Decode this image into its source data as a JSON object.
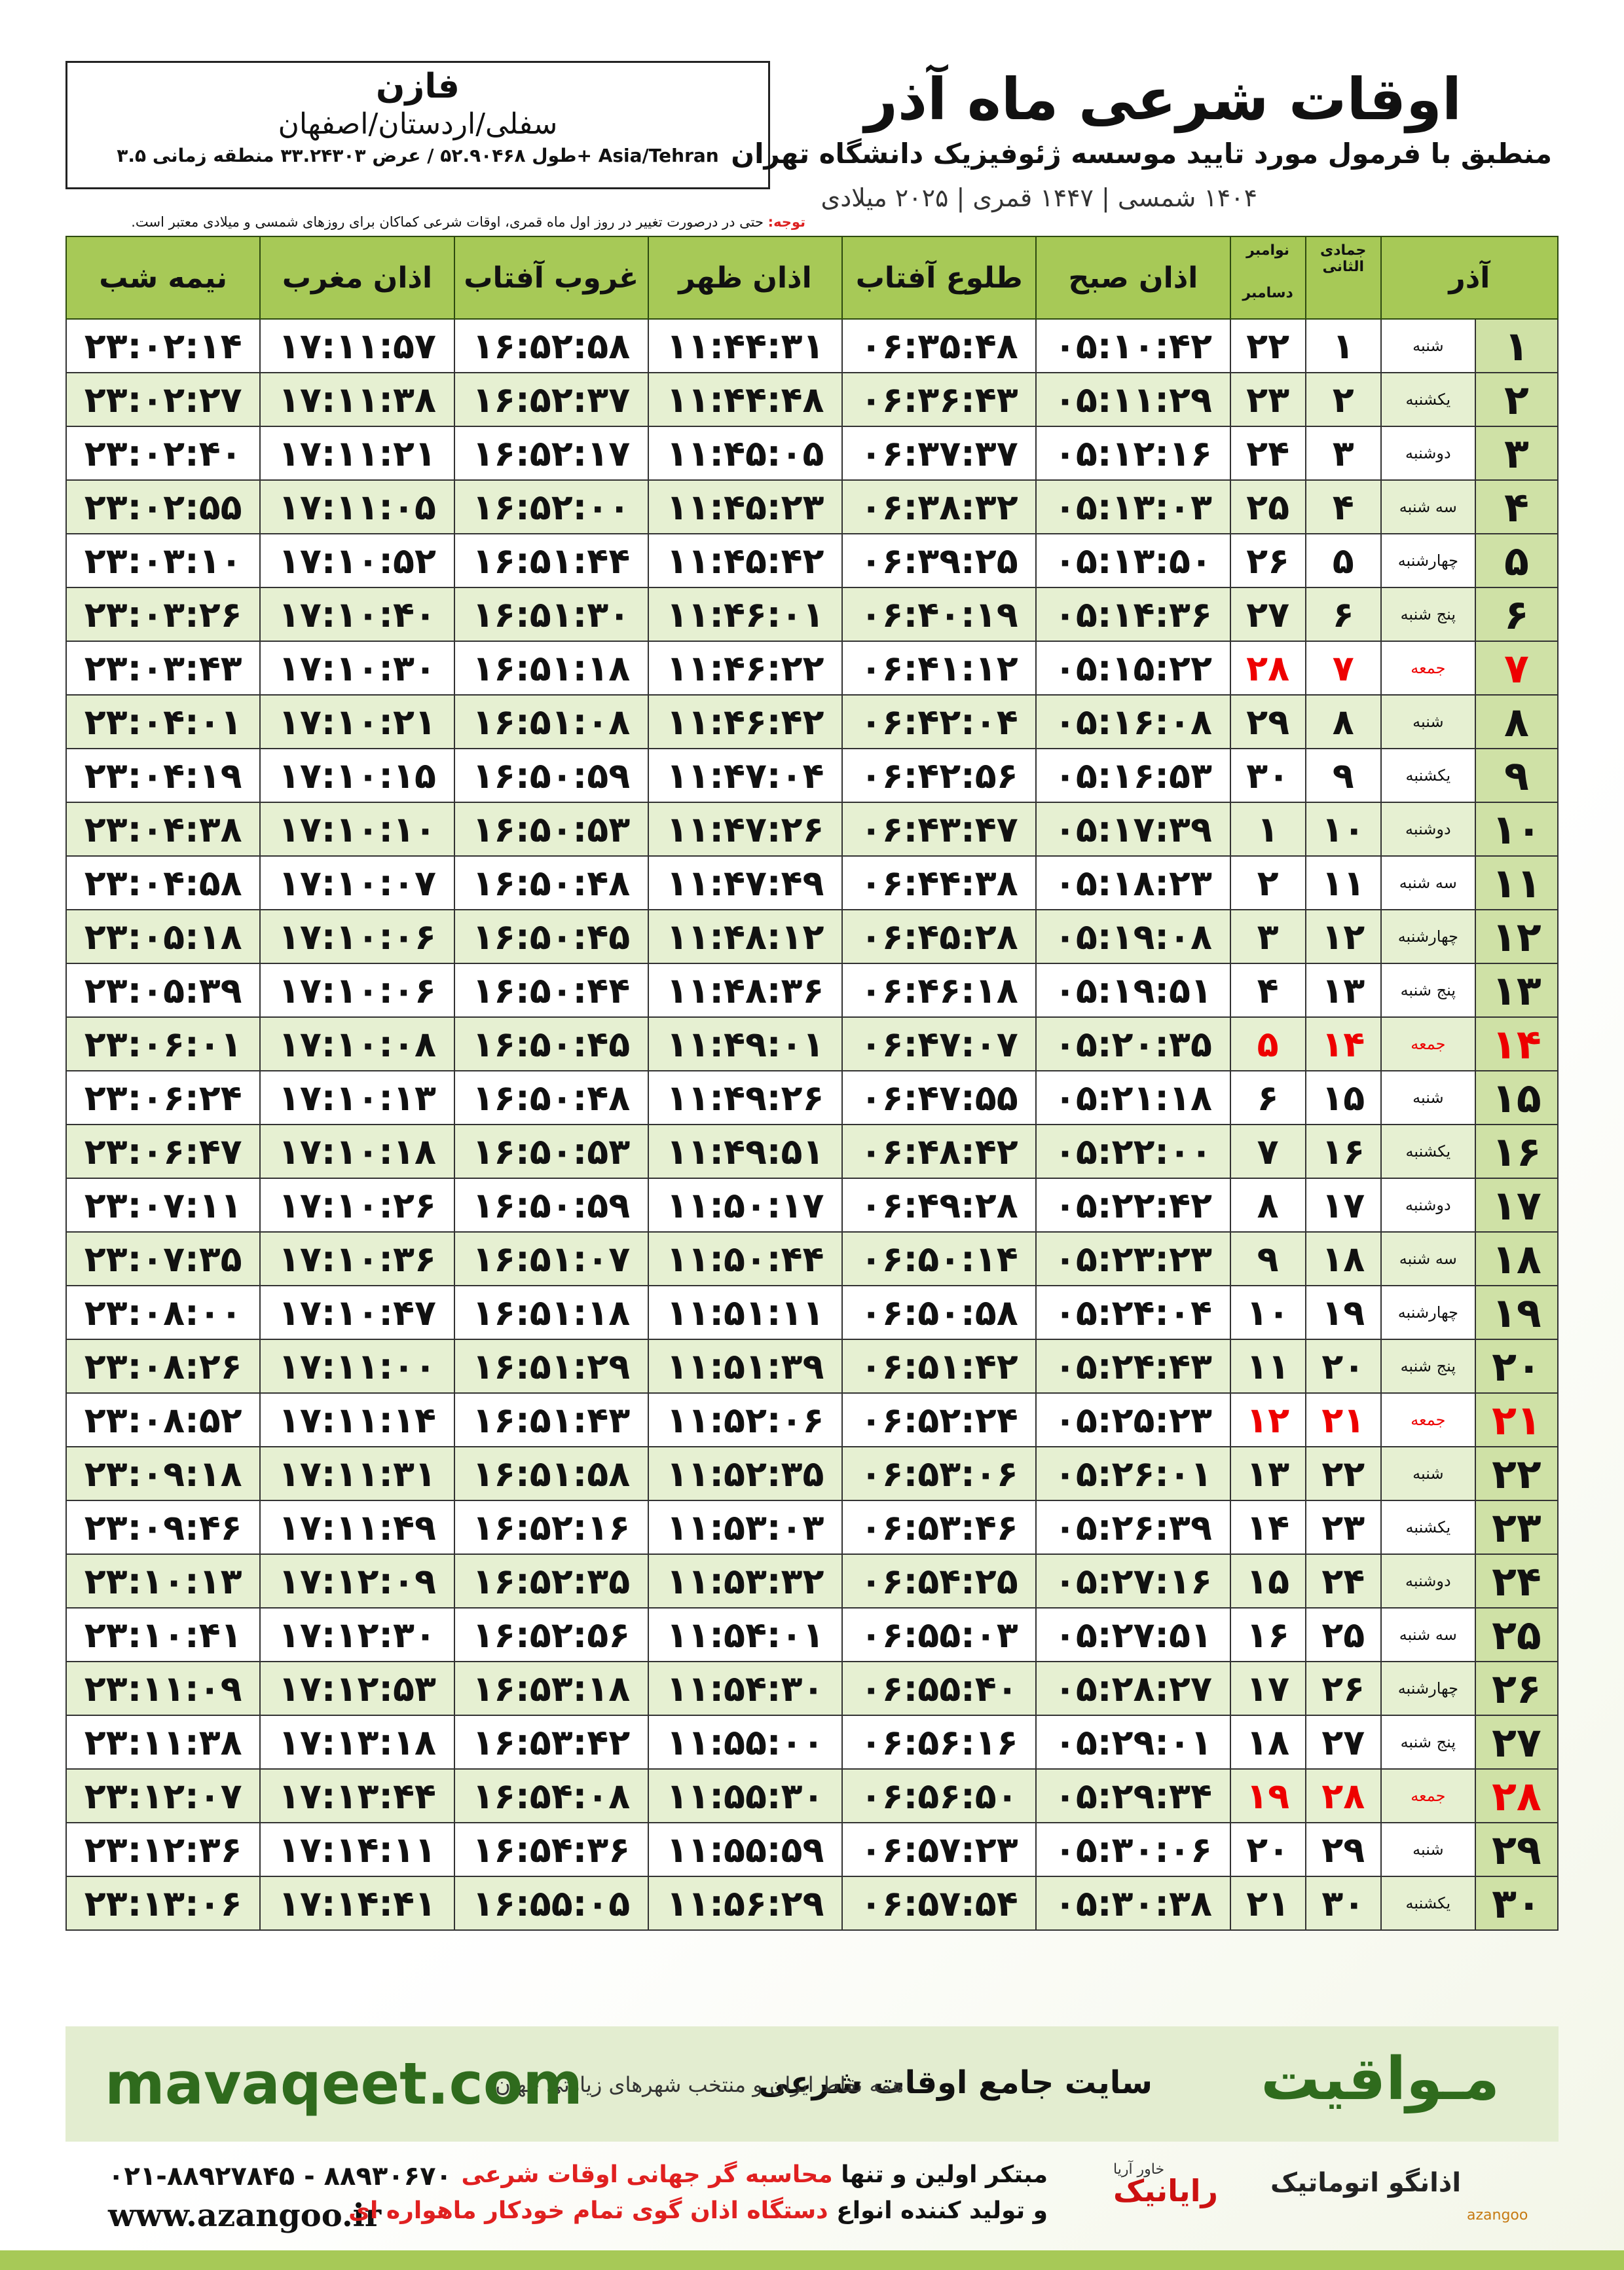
{
  "header": {
    "city": "فازن",
    "region": "سفلی/اردستان/اصفهان",
    "coords": "طول ۵۲.۹۰۴۶۸ / عرض ۳۳.۲۴۳۰۳ منطقه زمانی ۳.۵+ Asia/Tehran",
    "title": "اوقات شرعی ماه آذر",
    "subtitle": "منطبق با فرمول مورد تایید موسسه ژئوفیزیک دانشگاه تهران",
    "dates": "۱۴۰۴ شمسی | ۱۴۴۷ قمری | ۲۰۲۵ میلادی",
    "note_label": "توجه:",
    "note": "حتی در درصورت تغییر در روز اول ماه قمری، اوقات شرعی کماکان برای روزهای شمسی و میلادی معتبر است."
  },
  "table": {
    "header": {
      "day": "آذر",
      "hijri": "جمادی الثانی",
      "greg_top": "نوامبر",
      "greg_bottom": "دسامبر",
      "fajr": "اذان صبح",
      "sunrise": "طلوع آفتاب",
      "dhuhr": "اذان ظهر",
      "sunset": "غروب آفتاب",
      "maghrib": "اذان مغرب",
      "midnight": "نیمه شب"
    },
    "rows": [
      [
        "۱",
        "شنبه",
        "۱",
        "۲۲",
        "۰۵:۱۰:۴۲",
        "۰۶:۳۵:۴۸",
        "۱۱:۴۴:۳۱",
        "۱۶:۵۲:۵۸",
        "۱۷:۱۱:۵۷",
        "۲۳:۰۲:۱۴"
      ],
      [
        "۲",
        "یکشنبه",
        "۲",
        "۲۳",
        "۰۵:۱۱:۲۹",
        "۰۶:۳۶:۴۳",
        "۱۱:۴۴:۴۸",
        "۱۶:۵۲:۳۷",
        "۱۷:۱۱:۳۸",
        "۲۳:۰۲:۲۷"
      ],
      [
        "۳",
        "دوشنبه",
        "۳",
        "۲۴",
        "۰۵:۱۲:۱۶",
        "۰۶:۳۷:۳۷",
        "۱۱:۴۵:۰۵",
        "۱۶:۵۲:۱۷",
        "۱۷:۱۱:۲۱",
        "۲۳:۰۲:۴۰"
      ],
      [
        "۴",
        "سه شنبه",
        "۴",
        "۲۵",
        "۰۵:۱۳:۰۳",
        "۰۶:۳۸:۳۲",
        "۱۱:۴۵:۲۳",
        "۱۶:۵۲:۰۰",
        "۱۷:۱۱:۰۵",
        "۲۳:۰۲:۵۵"
      ],
      [
        "۵",
        "چهارشنبه",
        "۵",
        "۲۶",
        "۰۵:۱۳:۵۰",
        "۰۶:۳۹:۲۵",
        "۱۱:۴۵:۴۲",
        "۱۶:۵۱:۴۴",
        "۱۷:۱۰:۵۲",
        "۲۳:۰۳:۱۰"
      ],
      [
        "۶",
        "پنج شنبه",
        "۶",
        "۲۷",
        "۰۵:۱۴:۳۶",
        "۰۶:۴۰:۱۹",
        "۱۱:۴۶:۰۱",
        "۱۶:۵۱:۳۰",
        "۱۷:۱۰:۴۰",
        "۲۳:۰۳:۲۶"
      ],
      [
        "۷",
        "جمعه",
        "۷",
        "۲۸",
        "۰۵:۱۵:۲۲",
        "۰۶:۴۱:۱۲",
        "۱۱:۴۶:۲۲",
        "۱۶:۵۱:۱۸",
        "۱۷:۱۰:۳۰",
        "۲۳:۰۳:۴۳"
      ],
      [
        "۸",
        "شنبه",
        "۸",
        "۲۹",
        "۰۵:۱۶:۰۸",
        "۰۶:۴۲:۰۴",
        "۱۱:۴۶:۴۲",
        "۱۶:۵۱:۰۸",
        "۱۷:۱۰:۲۱",
        "۲۳:۰۴:۰۱"
      ],
      [
        "۹",
        "یکشنبه",
        "۹",
        "۳۰",
        "۰۵:۱۶:۵۳",
        "۰۶:۴۲:۵۶",
        "۱۱:۴۷:۰۴",
        "۱۶:۵۰:۵۹",
        "۱۷:۱۰:۱۵",
        "۲۳:۰۴:۱۹"
      ],
      [
        "۱۰",
        "دوشنبه",
        "۱۰",
        "۱",
        "۰۵:۱۷:۳۹",
        "۰۶:۴۳:۴۷",
        "۱۱:۴۷:۲۶",
        "۱۶:۵۰:۵۳",
        "۱۷:۱۰:۱۰",
        "۲۳:۰۴:۳۸"
      ],
      [
        "۱۱",
        "سه شنبه",
        "۱۱",
        "۲",
        "۰۵:۱۸:۲۳",
        "۰۶:۴۴:۳۸",
        "۱۱:۴۷:۴۹",
        "۱۶:۵۰:۴۸",
        "۱۷:۱۰:۰۷",
        "۲۳:۰۴:۵۸"
      ],
      [
        "۱۲",
        "چهارشنبه",
        "۱۲",
        "۳",
        "۰۵:۱۹:۰۸",
        "۰۶:۴۵:۲۸",
        "۱۱:۴۸:۱۲",
        "۱۶:۵۰:۴۵",
        "۱۷:۱۰:۰۶",
        "۲۳:۰۵:۱۸"
      ],
      [
        "۱۳",
        "پنج شنبه",
        "۱۳",
        "۴",
        "۰۵:۱۹:۵۱",
        "۰۶:۴۶:۱۸",
        "۱۱:۴۸:۳۶",
        "۱۶:۵۰:۴۴",
        "۱۷:۱۰:۰۶",
        "۲۳:۰۵:۳۹"
      ],
      [
        "۱۴",
        "جمعه",
        "۱۴",
        "۵",
        "۰۵:۲۰:۳۵",
        "۰۶:۴۷:۰۷",
        "۱۱:۴۹:۰۱",
        "۱۶:۵۰:۴۵",
        "۱۷:۱۰:۰۸",
        "۲۳:۰۶:۰۱"
      ],
      [
        "۱۵",
        "شنبه",
        "۱۵",
        "۶",
        "۰۵:۲۱:۱۸",
        "۰۶:۴۷:۵۵",
        "۱۱:۴۹:۲۶",
        "۱۶:۵۰:۴۸",
        "۱۷:۱۰:۱۳",
        "۲۳:۰۶:۲۴"
      ],
      [
        "۱۶",
        "یکشنبه",
        "۱۶",
        "۷",
        "۰۵:۲۲:۰۰",
        "۰۶:۴۸:۴۲",
        "۱۱:۴۹:۵۱",
        "۱۶:۵۰:۵۳",
        "۱۷:۱۰:۱۸",
        "۲۳:۰۶:۴۷"
      ],
      [
        "۱۷",
        "دوشنبه",
        "۱۷",
        "۸",
        "۰۵:۲۲:۴۲",
        "۰۶:۴۹:۲۸",
        "۱۱:۵۰:۱۷",
        "۱۶:۵۰:۵۹",
        "۱۷:۱۰:۲۶",
        "۲۳:۰۷:۱۱"
      ],
      [
        "۱۸",
        "سه شنبه",
        "۱۸",
        "۹",
        "۰۵:۲۳:۲۳",
        "۰۶:۵۰:۱۴",
        "۱۱:۵۰:۴۴",
        "۱۶:۵۱:۰۷",
        "۱۷:۱۰:۳۶",
        "۲۳:۰۷:۳۵"
      ],
      [
        "۱۹",
        "چهارشنبه",
        "۱۹",
        "۱۰",
        "۰۵:۲۴:۰۴",
        "۰۶:۵۰:۵۸",
        "۱۱:۵۱:۱۱",
        "۱۶:۵۱:۱۸",
        "۱۷:۱۰:۴۷",
        "۲۳:۰۸:۰۰"
      ],
      [
        "۲۰",
        "پنج شنبه",
        "۲۰",
        "۱۱",
        "۰۵:۲۴:۴۳",
        "۰۶:۵۱:۴۲",
        "۱۱:۵۱:۳۹",
        "۱۶:۵۱:۲۹",
        "۱۷:۱۱:۰۰",
        "۲۳:۰۸:۲۶"
      ],
      [
        "۲۱",
        "جمعه",
        "۲۱",
        "۱۲",
        "۰۵:۲۵:۲۳",
        "۰۶:۵۲:۲۴",
        "۱۱:۵۲:۰۶",
        "۱۶:۵۱:۴۳",
        "۱۷:۱۱:۱۴",
        "۲۳:۰۸:۵۲"
      ],
      [
        "۲۲",
        "شنبه",
        "۲۲",
        "۱۳",
        "۰۵:۲۶:۰۱",
        "۰۶:۵۳:۰۶",
        "۱۱:۵۲:۳۵",
        "۱۶:۵۱:۵۸",
        "۱۷:۱۱:۳۱",
        "۲۳:۰۹:۱۸"
      ],
      [
        "۲۳",
        "یکشنبه",
        "۲۳",
        "۱۴",
        "۰۵:۲۶:۳۹",
        "۰۶:۵۳:۴۶",
        "۱۱:۵۳:۰۳",
        "۱۶:۵۲:۱۶",
        "۱۷:۱۱:۴۹",
        "۲۳:۰۹:۴۶"
      ],
      [
        "۲۴",
        "دوشنبه",
        "۲۴",
        "۱۵",
        "۰۵:۲۷:۱۶",
        "۰۶:۵۴:۲۵",
        "۱۱:۵۳:۳۲",
        "۱۶:۵۲:۳۵",
        "۱۷:۱۲:۰۹",
        "۲۳:۱۰:۱۳"
      ],
      [
        "۲۵",
        "سه شنبه",
        "۲۵",
        "۱۶",
        "۰۵:۲۷:۵۱",
        "۰۶:۵۵:۰۳",
        "۱۱:۵۴:۰۱",
        "۱۶:۵۲:۵۶",
        "۱۷:۱۲:۳۰",
        "۲۳:۱۰:۴۱"
      ],
      [
        "۲۶",
        "چهارشنبه",
        "۲۶",
        "۱۷",
        "۰۵:۲۸:۲۷",
        "۰۶:۵۵:۴۰",
        "۱۱:۵۴:۳۰",
        "۱۶:۵۳:۱۸",
        "۱۷:۱۲:۵۳",
        "۲۳:۱۱:۰۹"
      ],
      [
        "۲۷",
        "پنج شنبه",
        "۲۷",
        "۱۸",
        "۰۵:۲۹:۰۱",
        "۰۶:۵۶:۱۶",
        "۱۱:۵۵:۰۰",
        "۱۶:۵۳:۴۲",
        "۱۷:۱۳:۱۸",
        "۲۳:۱۱:۳۸"
      ],
      [
        "۲۸",
        "جمعه",
        "۲۸",
        "۱۹",
        "۰۵:۲۹:۳۴",
        "۰۶:۵۶:۵۰",
        "۱۱:۵۵:۳۰",
        "۱۶:۵۴:۰۸",
        "۱۷:۱۳:۴۴",
        "۲۳:۱۲:۰۷"
      ],
      [
        "۲۹",
        "شنبه",
        "۲۹",
        "۲۰",
        "۰۵:۳۰:۰۶",
        "۰۶:۵۷:۲۳",
        "۱۱:۵۵:۵۹",
        "۱۶:۵۴:۳۶",
        "۱۷:۱۴:۱۱",
        "۲۳:۱۲:۳۶"
      ],
      [
        "۳۰",
        "یکشنبه",
        "۳۰",
        "۲۱",
        "۰۵:۳۰:۳۸",
        "۰۶:۵۷:۵۴",
        "۱۱:۵۶:۲۹",
        "۱۶:۵۵:۰۵",
        "۱۷:۱۴:۴۱",
        "۲۳:۱۳:۰۶"
      ]
    ]
  },
  "footer": {
    "brand": "مـواقیت",
    "tagline": "سایت جامع اوقات شرعی",
    "coverage": "همه نقاط ایران و منتخب شهرهای زیارتی جهان",
    "site": "mavaqeet.com",
    "phones": "۰۲۱-۸۸۹۲۷۸۴۵ - ۸۸۹۳۰۶۷۰",
    "web": "www.azangoo.ir",
    "line1_a": "مبتکر اولین و تنها",
    "line1_b": "محاسبه گر جهانی اوقات شرعی",
    "line2_a": "و تولید کننده انواع",
    "line2_b": "دستگاه اذان گوی تمام خودکار ماهواره ای",
    "logo1": "رایانیک",
    "logo1_sub": "خاور آریا",
    "logo2": "اذانگو اتوماتیک",
    "logo2_sub": "azangoo"
  }
}
